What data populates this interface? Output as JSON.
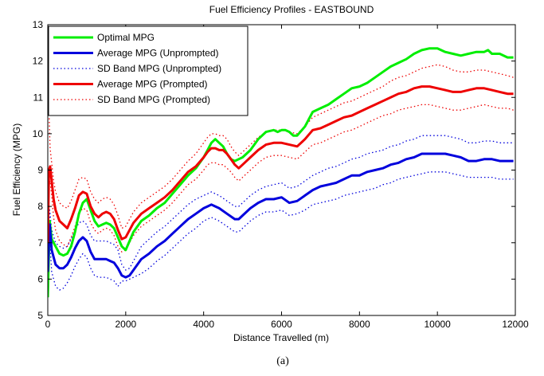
{
  "chart_data": {
    "type": "line",
    "title": "Fuel Efficiency Profiles - EASTBOUND",
    "xlabel": "Distance Travelled (m)",
    "ylabel": "Fuel Efficiency (MPG)",
    "xlim": [
      0,
      12000
    ],
    "ylim": [
      5,
      13
    ],
    "xticks": [
      0,
      2000,
      4000,
      6000,
      8000,
      10000,
      12000
    ],
    "yticks": [
      5,
      6,
      7,
      8,
      9,
      10,
      11,
      12,
      13
    ],
    "grid": false,
    "legend_position": "top-left",
    "caption": "(a)",
    "series": [
      {
        "name": "Optimal MPG",
        "color": "#00ee00",
        "style": "solid",
        "x": [
          0,
          50,
          100,
          200,
          300,
          400,
          500,
          600,
          700,
          800,
          900,
          1000,
          1100,
          1200,
          1300,
          1400,
          1500,
          1600,
          1700,
          1800,
          1900,
          2000,
          2200,
          2400,
          2600,
          2800,
          3000,
          3200,
          3400,
          3600,
          3800,
          4000,
          4100,
          4200,
          4300,
          4400,
          4500,
          4600,
          4700,
          4800,
          4900,
          5000,
          5200,
          5400,
          5600,
          5800,
          5900,
          6000,
          6100,
          6200,
          6300,
          6400,
          6600,
          6800,
          7000,
          7200,
          7400,
          7600,
          7800,
          8000,
          8200,
          8400,
          8600,
          8800,
          9000,
          9200,
          9400,
          9600,
          9800,
          10000,
          10200,
          10400,
          10600,
          10800,
          11000,
          11200,
          11300,
          11400,
          11600,
          11800,
          11950
        ],
        "y": [
          5.5,
          7.6,
          7.1,
          6.9,
          6.7,
          6.65,
          6.7,
          6.9,
          7.3,
          7.8,
          8.1,
          8.2,
          7.9,
          7.6,
          7.45,
          7.5,
          7.55,
          7.5,
          7.4,
          7.15,
          6.9,
          6.8,
          7.3,
          7.6,
          7.75,
          7.95,
          8.1,
          8.35,
          8.6,
          8.85,
          9.05,
          9.35,
          9.55,
          9.75,
          9.85,
          9.75,
          9.65,
          9.45,
          9.3,
          9.25,
          9.3,
          9.35,
          9.55,
          9.85,
          10.05,
          10.1,
          10.05,
          10.1,
          10.1,
          10.05,
          9.95,
          9.95,
          10.2,
          10.6,
          10.7,
          10.8,
          10.95,
          11.1,
          11.25,
          11.3,
          11.4,
          11.55,
          11.7,
          11.85,
          11.95,
          12.05,
          12.2,
          12.3,
          12.35,
          12.35,
          12.25,
          12.2,
          12.15,
          12.2,
          12.25,
          12.25,
          12.3,
          12.2,
          12.2,
          12.1,
          12.1
        ]
      },
      {
        "name": "Average MPG (Unprompted)",
        "color": "#0000dd",
        "style": "solid",
        "x": [
          0,
          50,
          100,
          200,
          300,
          400,
          500,
          600,
          700,
          800,
          900,
          1000,
          1100,
          1200,
          1300,
          1400,
          1500,
          1600,
          1700,
          1800,
          1900,
          2000,
          2100,
          2200,
          2400,
          2600,
          2800,
          3000,
          3200,
          3400,
          3600,
          3800,
          4000,
          4100,
          4200,
          4300,
          4400,
          4600,
          4800,
          4900,
          5000,
          5200,
          5400,
          5600,
          5800,
          6000,
          6200,
          6400,
          6600,
          6800,
          7000,
          7200,
          7400,
          7600,
          7800,
          8000,
          8200,
          8400,
          8600,
          8800,
          9000,
          9200,
          9400,
          9600,
          9800,
          10000,
          10200,
          10400,
          10600,
          10800,
          11000,
          11200,
          11400,
          11600,
          11800,
          11950
        ],
        "y": [
          6.2,
          7.5,
          6.8,
          6.4,
          6.3,
          6.3,
          6.4,
          6.6,
          6.85,
          7.05,
          7.15,
          7.05,
          6.75,
          6.55,
          6.55,
          6.55,
          6.55,
          6.5,
          6.45,
          6.3,
          6.1,
          6.05,
          6.1,
          6.25,
          6.55,
          6.7,
          6.9,
          7.05,
          7.25,
          7.45,
          7.65,
          7.8,
          7.95,
          8.0,
          8.05,
          8.0,
          7.95,
          7.8,
          7.65,
          7.65,
          7.75,
          7.95,
          8.1,
          8.2,
          8.2,
          8.25,
          8.1,
          8.15,
          8.3,
          8.45,
          8.55,
          8.6,
          8.65,
          8.75,
          8.85,
          8.85,
          8.95,
          9.0,
          9.05,
          9.15,
          9.2,
          9.3,
          9.35,
          9.45,
          9.45,
          9.45,
          9.45,
          9.4,
          9.35,
          9.25,
          9.25,
          9.3,
          9.3,
          9.25,
          9.25,
          9.25
        ]
      },
      {
        "name": "SD Band MPG (Unprompted)",
        "color": "#0000dd",
        "style": "dotted",
        "x": [
          0,
          50,
          100,
          200,
          300,
          400,
          500,
          600,
          700,
          800,
          900,
          1000,
          1100,
          1200,
          1300,
          1400,
          1500,
          1600,
          1700,
          1800,
          1900,
          2000,
          2100,
          2200,
          2400,
          2600,
          2800,
          3000,
          3200,
          3400,
          3600,
          3800,
          4000,
          4100,
          4200,
          4300,
          4400,
          4600,
          4800,
          4900,
          5000,
          5200,
          5400,
          5600,
          5800,
          6000,
          6200,
          6400,
          6600,
          6800,
          7000,
          7200,
          7400,
          7600,
          7800,
          8000,
          8200,
          8400,
          8600,
          8800,
          9000,
          9200,
          9400,
          9600,
          9800,
          10000,
          10200,
          10400,
          10600,
          10800,
          11000,
          11200,
          11400,
          11600,
          11800,
          11950
        ],
        "y": [
          6.0,
          7.1,
          6.2,
          5.8,
          5.7,
          5.75,
          5.9,
          6.1,
          6.35,
          6.55,
          6.7,
          6.6,
          6.3,
          6.1,
          6.05,
          6.05,
          6.05,
          6.0,
          5.95,
          5.8,
          5.95,
          5.95,
          6.0,
          6.05,
          6.15,
          6.3,
          6.5,
          6.65,
          6.85,
          7.05,
          7.25,
          7.4,
          7.6,
          7.65,
          7.7,
          7.65,
          7.6,
          7.45,
          7.3,
          7.3,
          7.4,
          7.6,
          7.75,
          7.85,
          7.85,
          7.9,
          7.75,
          7.8,
          7.9,
          8.05,
          8.1,
          8.15,
          8.2,
          8.3,
          8.35,
          8.4,
          8.45,
          8.5,
          8.6,
          8.65,
          8.75,
          8.8,
          8.85,
          8.9,
          8.95,
          8.95,
          8.95,
          8.9,
          8.85,
          8.8,
          8.8,
          8.8,
          8.8,
          8.75,
          8.75,
          8.75
        ]
      },
      {
        "name": "",
        "color": "#0000dd",
        "style": "dotted",
        "x": [
          0,
          50,
          100,
          200,
          300,
          400,
          500,
          600,
          700,
          800,
          900,
          1000,
          1100,
          1200,
          1300,
          1400,
          1500,
          1600,
          1700,
          1800,
          1900,
          2000,
          2100,
          2200,
          2400,
          2600,
          2800,
          3000,
          3200,
          3400,
          3600,
          3800,
          4000,
          4100,
          4200,
          4300,
          4400,
          4600,
          4800,
          4900,
          5000,
          5200,
          5400,
          5600,
          5800,
          6000,
          6200,
          6400,
          6600,
          6800,
          7000,
          7200,
          7400,
          7600,
          7800,
          8000,
          8200,
          8400,
          8600,
          8800,
          9000,
          9200,
          9400,
          9600,
          9800,
          10000,
          10200,
          10400,
          10600,
          10800,
          11000,
          11200,
          11400,
          11600,
          11800,
          11950
        ],
        "y": [
          6.4,
          7.9,
          7.35,
          7.0,
          6.9,
          6.85,
          6.9,
          7.1,
          7.35,
          7.55,
          7.6,
          7.5,
          7.2,
          7.05,
          7.05,
          7.05,
          7.05,
          7.0,
          6.95,
          6.8,
          6.4,
          6.25,
          6.3,
          6.5,
          6.9,
          7.1,
          7.3,
          7.45,
          7.65,
          7.85,
          8.05,
          8.2,
          8.3,
          8.35,
          8.4,
          8.35,
          8.3,
          8.15,
          8.0,
          8.0,
          8.1,
          8.3,
          8.45,
          8.55,
          8.6,
          8.65,
          8.5,
          8.55,
          8.7,
          8.85,
          8.95,
          9.05,
          9.1,
          9.2,
          9.3,
          9.35,
          9.45,
          9.5,
          9.55,
          9.65,
          9.7,
          9.8,
          9.85,
          9.95,
          9.95,
          9.95,
          9.95,
          9.9,
          9.85,
          9.75,
          9.75,
          9.8,
          9.8,
          9.75,
          9.75,
          9.75
        ]
      },
      {
        "name": "Average MPG (Prompted)",
        "color": "#ee0000",
        "style": "solid",
        "x": [
          0,
          30,
          60,
          100,
          150,
          200,
          300,
          400,
          500,
          600,
          700,
          800,
          900,
          1000,
          1100,
          1200,
          1300,
          1400,
          1500,
          1600,
          1700,
          1800,
          1900,
          2000,
          2200,
          2400,
          2600,
          2800,
          3000,
          3200,
          3400,
          3600,
          3800,
          4000,
          4100,
          4200,
          4300,
          4400,
          4500,
          4600,
          4700,
          4800,
          4900,
          5000,
          5200,
          5400,
          5600,
          5800,
          6000,
          6200,
          6400,
          6600,
          6800,
          7000,
          7200,
          7400,
          7600,
          7800,
          8000,
          8200,
          8400,
          8600,
          8800,
          9000,
          9200,
          9400,
          9600,
          9800,
          10000,
          10200,
          10400,
          10600,
          10800,
          11000,
          11200,
          11400,
          11600,
          11800,
          11950
        ],
        "y": [
          7.0,
          9.0,
          9.1,
          8.7,
          8.2,
          7.9,
          7.6,
          7.5,
          7.4,
          7.65,
          7.95,
          8.3,
          8.4,
          8.35,
          8.0,
          7.8,
          7.7,
          7.8,
          7.85,
          7.8,
          7.65,
          7.35,
          7.1,
          7.15,
          7.55,
          7.8,
          7.95,
          8.1,
          8.25,
          8.45,
          8.7,
          8.95,
          9.1,
          9.35,
          9.5,
          9.6,
          9.6,
          9.55,
          9.55,
          9.45,
          9.3,
          9.15,
          9.05,
          9.15,
          9.35,
          9.55,
          9.7,
          9.75,
          9.75,
          9.7,
          9.65,
          9.85,
          10.1,
          10.15,
          10.25,
          10.35,
          10.45,
          10.5,
          10.6,
          10.7,
          10.8,
          10.9,
          11.0,
          11.1,
          11.15,
          11.25,
          11.3,
          11.3,
          11.25,
          11.2,
          11.15,
          11.15,
          11.2,
          11.25,
          11.25,
          11.2,
          11.15,
          11.1,
          11.1
        ]
      },
      {
        "name": "SD Band MPG (Prompted)",
        "color": "#ee0000",
        "style": "dotted",
        "x": [
          0,
          30,
          60,
          100,
          150,
          200,
          300,
          400,
          500,
          600,
          700,
          800,
          900,
          1000,
          1100,
          1200,
          1300,
          1400,
          1500,
          1600,
          1700,
          1800,
          1900,
          2000,
          2200,
          2400,
          2600,
          2800,
          3000,
          3200,
          3400,
          3600,
          3800,
          4000,
          4100,
          4200,
          4300,
          4400,
          4500,
          4600,
          4700,
          4800,
          4900,
          5000,
          5200,
          5400,
          5600,
          5800,
          6000,
          6200,
          6400,
          6600,
          6800,
          7000,
          7200,
          7400,
          7600,
          7800,
          8000,
          8200,
          8400,
          8600,
          8800,
          9000,
          9200,
          9400,
          9600,
          9800,
          10000,
          10200,
          10400,
          10600,
          10800,
          11000,
          11200,
          11400,
          11600,
          11800,
          11950
        ],
        "y": [
          6.0,
          8.6,
          8.7,
          8.3,
          7.7,
          7.35,
          7.05,
          6.95,
          6.9,
          7.15,
          7.45,
          7.8,
          7.95,
          7.9,
          7.55,
          7.35,
          7.25,
          7.35,
          7.4,
          7.35,
          7.2,
          6.9,
          6.75,
          6.8,
          7.2,
          7.45,
          7.6,
          7.75,
          7.9,
          8.1,
          8.35,
          8.6,
          8.75,
          9.0,
          9.15,
          9.2,
          9.2,
          9.15,
          9.15,
          9.05,
          8.95,
          8.8,
          8.7,
          8.8,
          9.0,
          9.2,
          9.35,
          9.4,
          9.4,
          9.35,
          9.3,
          9.5,
          9.7,
          9.75,
          9.85,
          9.95,
          10.05,
          10.1,
          10.2,
          10.3,
          10.4,
          10.5,
          10.55,
          10.65,
          10.7,
          10.75,
          10.8,
          10.8,
          10.75,
          10.7,
          10.65,
          10.65,
          10.7,
          10.75,
          10.8,
          10.75,
          10.7,
          10.7,
          10.65
        ]
      },
      {
        "name": "",
        "color": "#ee0000",
        "style": "dotted",
        "x": [
          0,
          30,
          60,
          100,
          150,
          200,
          300,
          400,
          500,
          600,
          700,
          800,
          900,
          1000,
          1100,
          1200,
          1300,
          1400,
          1500,
          1600,
          1700,
          1800,
          1900,
          2000,
          2200,
          2400,
          2600,
          2800,
          3000,
          3200,
          3400,
          3600,
          3800,
          4000,
          4100,
          4200,
          4300,
          4400,
          4500,
          4600,
          4700,
          4800,
          4900,
          5000,
          5200,
          5400,
          5600,
          5800,
          6000,
          6200,
          6400,
          6600,
          6800,
          7000,
          7200,
          7400,
          7600,
          7800,
          8000,
          8200,
          8400,
          8600,
          8800,
          9000,
          9200,
          9400,
          9600,
          9800,
          10000,
          10200,
          10400,
          10600,
          10800,
          11000,
          11200,
          11400,
          11600,
          11800,
          11950
        ],
        "y": [
          12.2,
          10.6,
          9.6,
          9.2,
          8.7,
          8.4,
          8.1,
          8.0,
          7.95,
          8.15,
          8.45,
          8.75,
          8.8,
          8.75,
          8.4,
          8.2,
          8.1,
          8.2,
          8.25,
          8.2,
          8.05,
          7.75,
          7.4,
          7.45,
          7.85,
          8.1,
          8.25,
          8.4,
          8.55,
          8.75,
          9.0,
          9.25,
          9.45,
          9.75,
          9.9,
          10.0,
          10.0,
          9.95,
          9.95,
          9.85,
          9.65,
          9.5,
          9.4,
          9.5,
          9.7,
          9.9,
          10.05,
          10.1,
          10.1,
          10.05,
          10.0,
          10.2,
          10.45,
          10.55,
          10.65,
          10.75,
          10.85,
          10.9,
          11.0,
          11.1,
          11.2,
          11.3,
          11.45,
          11.55,
          11.6,
          11.7,
          11.8,
          11.85,
          11.9,
          11.85,
          11.75,
          11.7,
          11.7,
          11.75,
          11.75,
          11.7,
          11.65,
          11.6,
          11.55
        ]
      }
    ]
  }
}
